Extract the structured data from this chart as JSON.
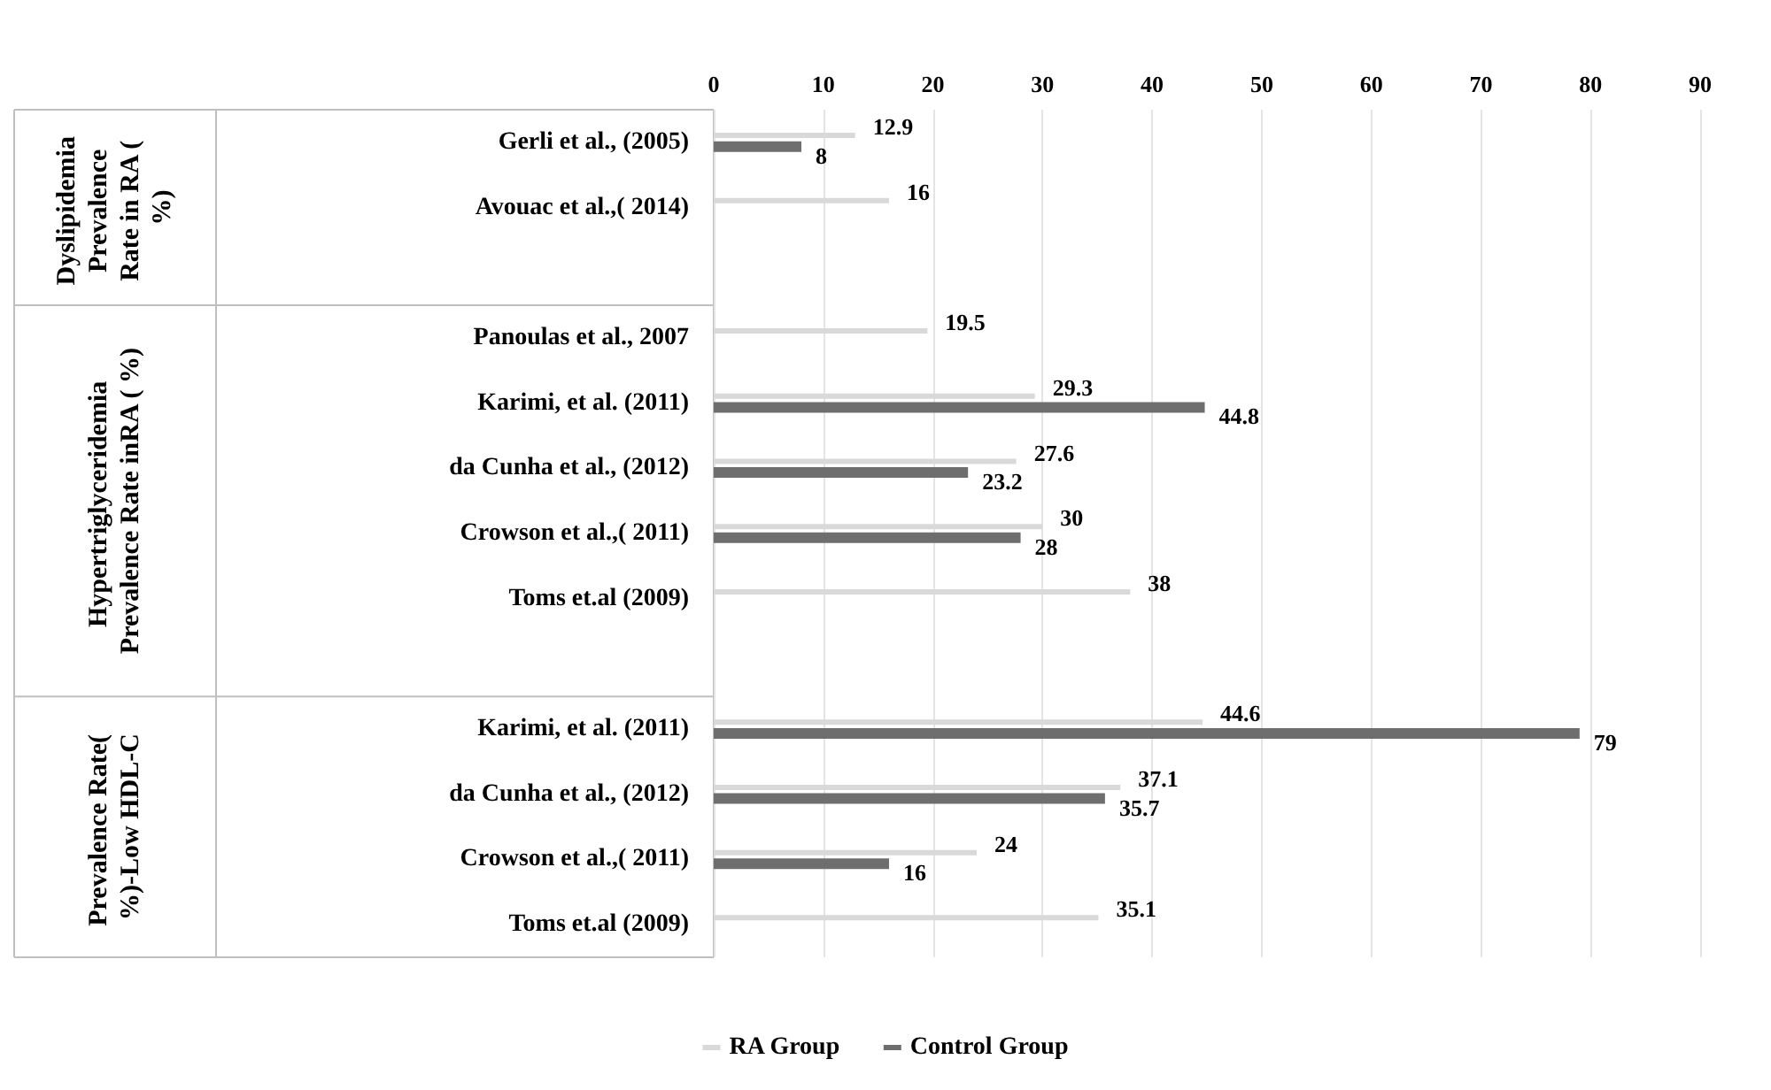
{
  "chart_data": {
    "type": "bar",
    "orientation": "horizontal",
    "categories": [
      "Gerli et al., (2005)",
      "Avouac et al.,( 2014)",
      null,
      "Panoulas et al., 2007",
      "Karimi, et al. (2011)",
      "da Cunha et al., (2012)",
      "Crowson et al.,( 2011)",
      "Toms et.al (2009)",
      null,
      "Karimi, et al. (2011)",
      "da Cunha et al., (2012)",
      "Crowson et al.,( 2011)",
      "Toms et.al (2009)"
    ],
    "series": [
      {
        "name": "RA Group",
        "color": "#d9d9d9",
        "values": [
          12.9,
          16,
          null,
          19.5,
          29.3,
          27.6,
          30,
          38,
          null,
          44.6,
          37.1,
          24,
          35.1
        ]
      },
      {
        "name": "Control Group",
        "color": "#6e6e6e",
        "values": [
          8,
          null,
          null,
          null,
          44.8,
          23.2,
          28,
          null,
          null,
          79,
          35.7,
          16,
          null
        ]
      }
    ],
    "xlim": [
      0,
      90
    ],
    "xticks": [
      0,
      10,
      20,
      30,
      40,
      50,
      60,
      70,
      80,
      90
    ],
    "annotations": [
      "Dyslipidemia Prevalence Rate in RA ( %)",
      "Hypertriglyceridemia Prevalence Rate inRA ( %)",
      "Prevalence Rate( %)-Low HDL-C"
    ],
    "data_labels": true,
    "grid": "x",
    "legend": "bottom"
  }
}
